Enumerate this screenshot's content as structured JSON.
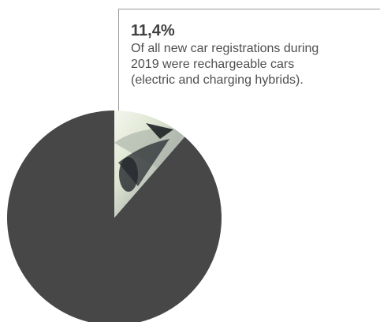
{
  "chart_data": {
    "type": "pie",
    "values": [
      11.4,
      88.6
    ],
    "slice_colors": [
      "#e9eee0",
      "#474747"
    ],
    "annotation": {
      "value": "11,4%",
      "text": "Of all new car registrations during\n2019 were rechargeable cars\n(electric and charging hybrids)."
    }
  }
}
